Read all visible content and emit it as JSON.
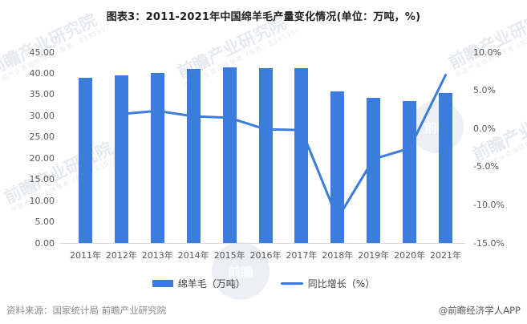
{
  "title": "图表3：2011-2021年中国绵羊毛产量变化情况(单位：万吨，%)",
  "footer": {
    "source": "资料来源：国家统计局 前瞻产业研究院",
    "credit": "@前瞻经济学人APP"
  },
  "watermark": {
    "brand": "前瞻产业研究院",
    "sub": "中国产业咨询领导者（股票：839599）",
    "logo_glyph": "前瞻"
  },
  "colors": {
    "primary_blue": "#3B7CDC",
    "axis_text": "#595959",
    "title_text": "#1f1f1f",
    "legend_text": "#404040",
    "baseline_gray": "#d9d9d9",
    "footer_source_gray": "#8c8c8c",
    "footer_credit_gray": "#595959"
  },
  "chart_data": {
    "type": "bar",
    "subtype": "dual-axis bar + line combo",
    "title": "图表3：2011-2021年中国绵羊毛产量变化情况(单位：万吨，%)",
    "categories": [
      "2011年",
      "2012年",
      "2013年",
      "2014年",
      "2015年",
      "2016年",
      "2017年",
      "2018年",
      "2019年",
      "2020年",
      "2021年"
    ],
    "series": [
      {
        "name": "绵羊毛（万吨）",
        "type": "bar",
        "axis": "left",
        "values": [
          38.9,
          39.5,
          40.1,
          41.0,
          41.5,
          41.3,
          41.2,
          35.7,
          34.2,
          33.5,
          35.4
        ]
      },
      {
        "name": "同比增长（%）",
        "type": "line",
        "axis": "right",
        "values": [
          null,
          1.9,
          2.3,
          1.6,
          1.4,
          -0.1,
          -0.2,
          -11.8,
          -4.0,
          -2.6,
          7.0
        ]
      }
    ],
    "left_axis": {
      "min": 0,
      "max": 45,
      "step": 5,
      "ticks": [
        "45.00",
        "40.00",
        "35.00",
        "30.00",
        "25.00",
        "20.00",
        "15.00",
        "10.00",
        "5.00",
        "0.00"
      ]
    },
    "right_axis": {
      "min": -15,
      "max": 10,
      "step": 5,
      "ticks": [
        "10.0%",
        "5.0%",
        "0.0%",
        "-5.0%",
        "-10.0%",
        "-15.0%"
      ]
    },
    "grid": false,
    "legend_position": "bottom",
    "xlabel": "",
    "ylabel_left": "万吨",
    "ylabel_right": "%"
  }
}
